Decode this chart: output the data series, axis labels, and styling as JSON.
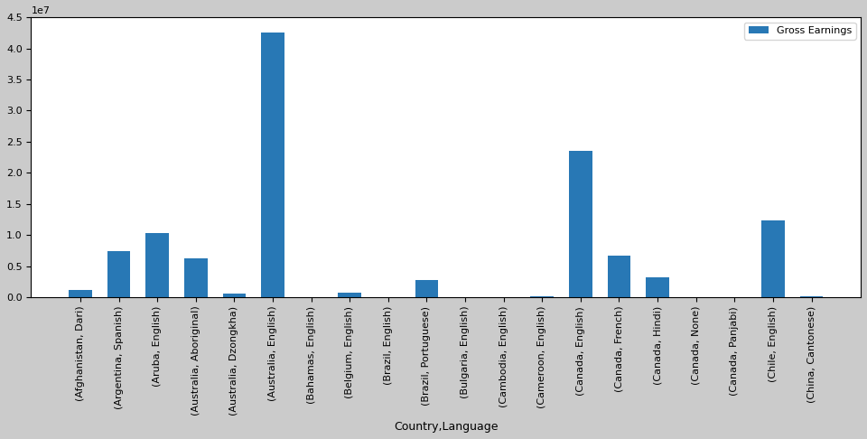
{
  "categories": [
    "(Afghanistan, Dari)",
    "(Argentina, Spanish)",
    "(Aruba, English)",
    "(Australia, Aboriginal)",
    "(Australia, Dzongkha)",
    "(Australia, English)",
    "(Bahamas, English)",
    "(Belgium, English)",
    "(Brazil, English)",
    "(Brazil, Portuguese)",
    "(Bulgaria, English)",
    "(Cambodia, English)",
    "(Cameroon, English)",
    "(Canada, English)",
    "(Canada, French)",
    "(Canada, Hindi)",
    "(Canada, None)",
    "(Canada, Panjabi)",
    "(Chile, English)",
    "(China, Cantonese)"
  ],
  "values": [
    1200000,
    7400000,
    10300000,
    6300000,
    550000,
    42500000,
    0,
    750000,
    0,
    2700000,
    0,
    0,
    150000,
    23500000,
    6700000,
    3200000,
    0,
    0,
    12300000,
    200000
  ],
  "bar_color": "#2878b5",
  "xlabel": "Country,Language",
  "ylabel": "",
  "legend_label": "Gross Earnings",
  "bg_outer": "#cbcbcb",
  "bg_inner": "#ffffff",
  "ylim": [
    0,
    45000000
  ],
  "xlabel_fontsize": 9,
  "tick_fontsize": 8,
  "legend_fontsize": 8
}
